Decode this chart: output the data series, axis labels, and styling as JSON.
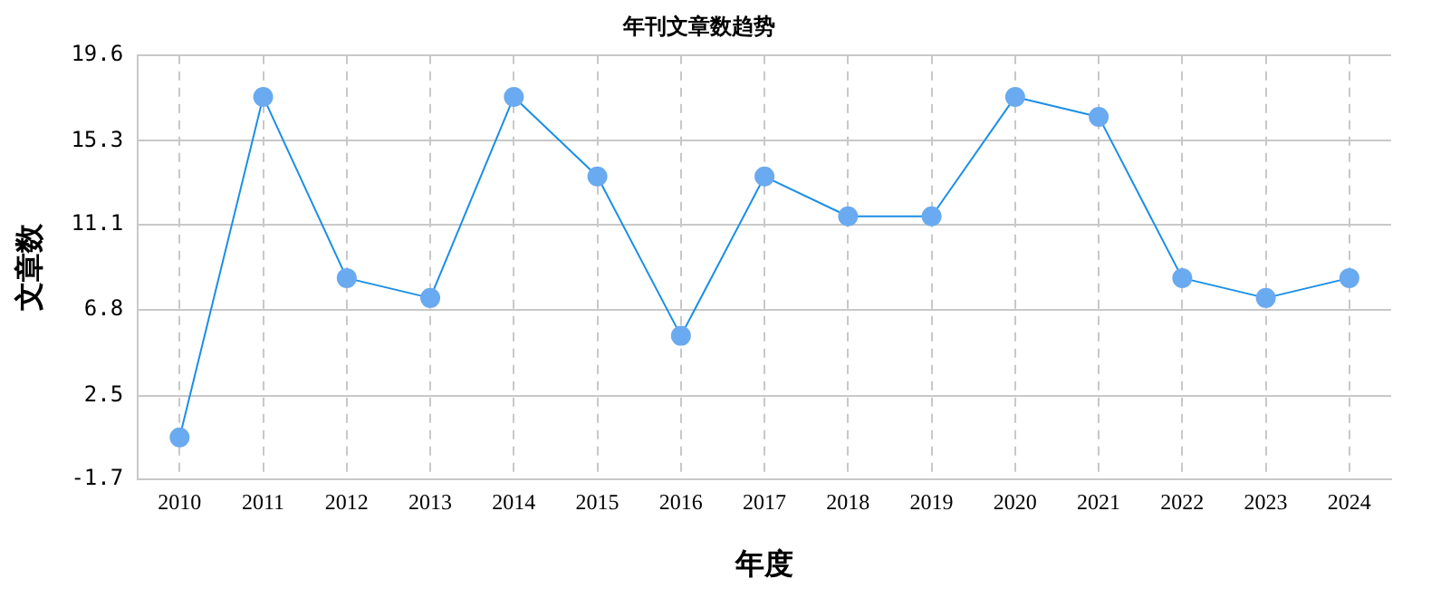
{
  "chart_data": {
    "type": "line",
    "title": "年刊文章数趋势",
    "xlabel": "年度",
    "ylabel": "文章数",
    "categories": [
      "2010",
      "2011",
      "2012",
      "2013",
      "2014",
      "2015",
      "2016",
      "2017",
      "2018",
      "2019",
      "2020",
      "2021",
      "2022",
      "2023",
      "2024"
    ],
    "series": [
      {
        "color": "#1a8fe6",
        "values": [
          0.4,
          17.5,
          8.4,
          7.4,
          17.5,
          13.5,
          5.5,
          13.5,
          11.5,
          11.5,
          17.5,
          16.5,
          8.4,
          7.4,
          8.4
        ]
      }
    ],
    "ylim": [
      -1.7,
      19.6
    ],
    "yticks": [
      -1.7,
      2.5,
      6.8,
      11.1,
      15.3,
      19.6
    ],
    "grid": true,
    "legend": false,
    "marker": "circle",
    "line_style": "solid"
  }
}
